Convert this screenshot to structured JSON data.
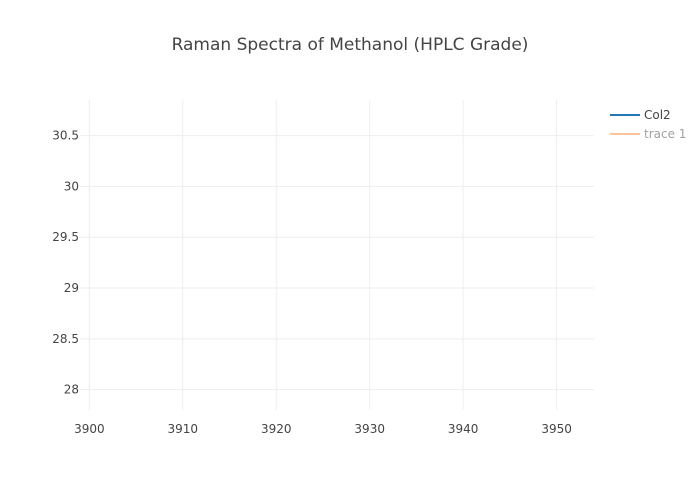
{
  "chart_data": {
    "type": "line",
    "title": "Raman Spectra of Methanol (HPLC Grade)",
    "xlabel": "",
    "ylabel": "",
    "xlim": [
      3899,
      3954
    ],
    "ylim": [
      27.8,
      30.85
    ],
    "x_ticks": [
      {
        "value": 3900,
        "label": "3900"
      },
      {
        "value": 3910,
        "label": "3910"
      },
      {
        "value": 3920,
        "label": "3920"
      },
      {
        "value": 3930,
        "label": "3930"
      },
      {
        "value": 3940,
        "label": "3940"
      },
      {
        "value": 3950,
        "label": "3950"
      }
    ],
    "y_ticks": [
      {
        "value": 28,
        "label": "28"
      },
      {
        "value": 28.5,
        "label": "28.5"
      },
      {
        "value": 29,
        "label": "29"
      },
      {
        "value": 29.5,
        "label": "29.5"
      },
      {
        "value": 30,
        "label": "30"
      },
      {
        "value": 30.5,
        "label": "30.5"
      }
    ],
    "grid": true,
    "legend_position": "top-right",
    "series": [
      {
        "name": "Col2",
        "color": "#1f77b4",
        "visible": true,
        "x": [],
        "y": []
      },
      {
        "name": "trace 1",
        "color": "#ffbb88",
        "visible": "legendonly",
        "x": [],
        "y": []
      }
    ]
  }
}
